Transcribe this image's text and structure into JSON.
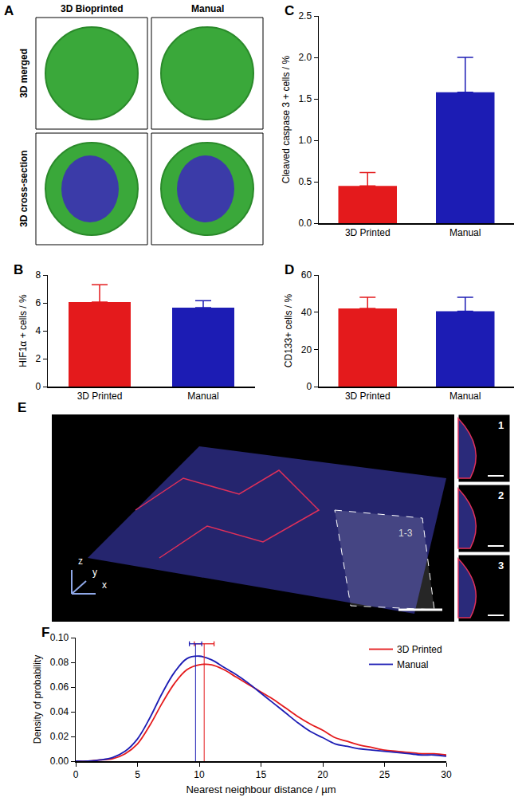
{
  "chart_data": [
    {
      "type": "bar",
      "annotations": [
        "C"
      ],
      "categories": [
        "3D Printed",
        "Manual"
      ],
      "values": [
        0.45,
        1.58
      ],
      "errors": [
        0.16,
        0.42
      ],
      "colors": [
        "#e41a1c",
        "#1c1cb4"
      ],
      "y_label": "Cleaved caspase 3 + cells / %",
      "ylim": [
        0,
        2.5
      ],
      "yticks": [
        {
          "value": 0,
          "label": "0.0"
        },
        {
          "value": 0.5,
          "label": "0.5"
        },
        {
          "value": 1,
          "label": "1.0"
        },
        {
          "value": 1.5,
          "label": "1.5"
        },
        {
          "value": 2,
          "label": "2.0"
        },
        {
          "value": 2.5,
          "label": "2.5"
        }
      ]
    },
    {
      "type": "bar",
      "annotations": [
        "B"
      ],
      "categories": [
        "3D Printed",
        "Manual"
      ],
      "values": [
        6.05,
        5.65
      ],
      "errors": [
        1.25,
        0.5
      ],
      "colors": [
        "#e41a1c",
        "#1c1cb4"
      ],
      "y_label": "HIF1α + cells / %",
      "ylim": [
        0,
        8
      ],
      "yticks": [
        0,
        2,
        4,
        6,
        8
      ]
    },
    {
      "type": "bar",
      "annotations": [
        "D"
      ],
      "categories": [
        "3D Printed",
        "Manual"
      ],
      "values": [
        42,
        40.5
      ],
      "errors": [
        6,
        7.5
      ],
      "colors": [
        "#e41a1c",
        "#1c1cb4"
      ],
      "y_label": "CD133+ cells / %",
      "ylim": [
        0,
        60
      ],
      "yticks": [
        0,
        20,
        40,
        60
      ]
    },
    {
      "type": "line",
      "annotations": [
        "F"
      ],
      "x": [
        0,
        1,
        2,
        3,
        4,
        5,
        6,
        7,
        8,
        9,
        10,
        11,
        12,
        13,
        14,
        15,
        16,
        17,
        18,
        19,
        20,
        21,
        22,
        23,
        24,
        25,
        26,
        27,
        28,
        29,
        30
      ],
      "series": [
        {
          "name": "3D Printed",
          "color": "#e41a1c",
          "mean": 10.4,
          "mean_error": 0.8,
          "values": [
            0.0,
            0.0,
            0.001,
            0.002,
            0.006,
            0.014,
            0.029,
            0.047,
            0.063,
            0.074,
            0.078,
            0.078,
            0.074,
            0.068,
            0.062,
            0.056,
            0.05,
            0.043,
            0.036,
            0.03,
            0.025,
            0.019,
            0.016,
            0.013,
            0.011,
            0.009,
            0.008,
            0.007,
            0.006,
            0.006,
            0.005
          ]
        },
        {
          "name": "Manual",
          "color": "#1c1cb4",
          "mean": 9.7,
          "mean_error": 0.5,
          "values": [
            0.0,
            0.0,
            0.001,
            0.003,
            0.008,
            0.018,
            0.035,
            0.055,
            0.072,
            0.083,
            0.085,
            0.082,
            0.076,
            0.07,
            0.063,
            0.055,
            0.047,
            0.039,
            0.031,
            0.024,
            0.019,
            0.014,
            0.012,
            0.01,
            0.009,
            0.008,
            0.007,
            0.006,
            0.005,
            0.005,
            0.004
          ]
        }
      ],
      "x_label": "Nearest neighbour distance / µm",
      "y_label": "Density of probability",
      "xlim": [
        0,
        30
      ],
      "xticks": [
        0,
        5,
        10,
        15,
        20,
        25,
        30
      ],
      "ylim": [
        0,
        0.1
      ],
      "yticks": [
        {
          "value": 0,
          "label": "0.00"
        },
        {
          "value": 0.02,
          "label": "0.02"
        },
        {
          "value": 0.04,
          "label": "0.04"
        },
        {
          "value": 0.06,
          "label": "0.06"
        },
        {
          "value": 0.08,
          "label": "0.08"
        },
        {
          "value": 0.1,
          "label": "0.10"
        }
      ],
      "legend": "upper right"
    }
  ],
  "images": [
    {
      "panel": "A",
      "columns": [
        "3D Bioprinted",
        "Manual"
      ],
      "rows": [
        "3D merged",
        "3D cross-section"
      ]
    },
    {
      "panel": "E",
      "section": "1-3",
      "insets": [
        "1",
        "2",
        "3"
      ],
      "axes": [
        "z",
        "y",
        "x"
      ]
    }
  ]
}
